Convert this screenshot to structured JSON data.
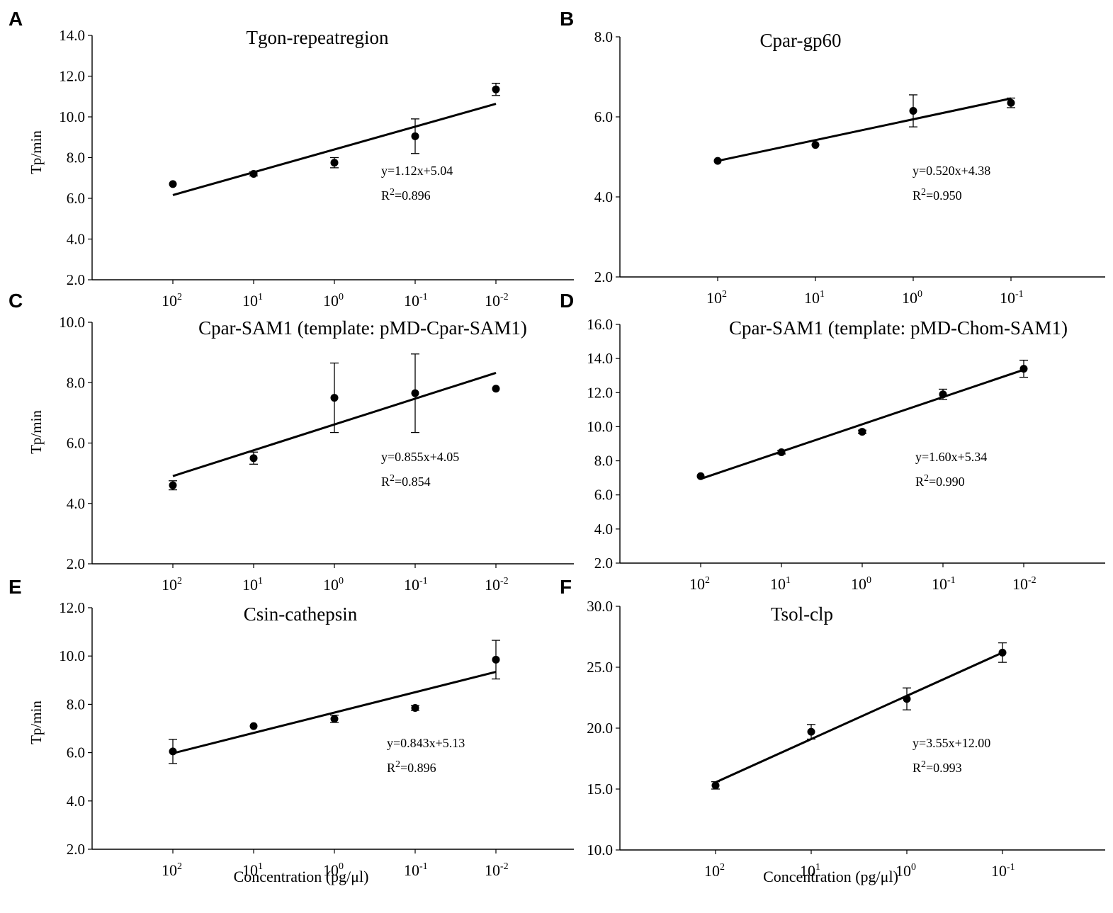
{
  "figure": {
    "xlabel": "Concentration (pg/μl)"
  },
  "chart_data": [
    {
      "panel": "A",
      "type": "scatter",
      "title": "Tgon-repeatregion",
      "ylabel": "Tp/min",
      "xlabel": "",
      "ylim": [
        2.0,
        14.0
      ],
      "yticks": [
        "2.0",
        "4.0",
        "6.0",
        "8.0",
        "10.0",
        "12.0",
        "14.0"
      ],
      "categories": [
        {
          "base": "10",
          "exp": "2"
        },
        {
          "base": "10",
          "exp": "1"
        },
        {
          "base": "10",
          "exp": "0"
        },
        {
          "base": "10",
          "exp": "-1"
        },
        {
          "base": "10",
          "exp": "-2"
        }
      ],
      "values": [
        6.7,
        7.2,
        7.75,
        9.05,
        11.35
      ],
      "errors": [
        0.0,
        0.1,
        0.25,
        0.85,
        0.3
      ],
      "fit": {
        "slope": 1.12,
        "intercept": 5.04
      },
      "equation": "y=1.12x+5.04",
      "r2_label": "R",
      "r2_sup": "2",
      "r2_value": "=0.896"
    },
    {
      "panel": "B",
      "type": "scatter",
      "title": "Cpar-gp60",
      "ylabel": "",
      "xlabel": "",
      "ylim": [
        2.0,
        8.0
      ],
      "yticks": [
        "2.0",
        "4.0",
        "6.0",
        "8.0"
      ],
      "categories": [
        {
          "base": "10",
          "exp": "2"
        },
        {
          "base": "10",
          "exp": "1"
        },
        {
          "base": "10",
          "exp": "0"
        },
        {
          "base": "10",
          "exp": "-1"
        }
      ],
      "values": [
        4.9,
        5.3,
        6.15,
        6.35
      ],
      "errors": [
        0.0,
        0.0,
        0.4,
        0.12
      ],
      "fit": {
        "slope": 0.52,
        "intercept": 4.38
      },
      "equation": "y=0.520x+4.38",
      "r2_label": "R",
      "r2_sup": "2",
      "r2_value": "=0.950"
    },
    {
      "panel": "C",
      "type": "scatter",
      "title": "Cpar-SAM1 (template: pMD-Cpar-SAM1)",
      "ylabel": "Tp/min",
      "xlabel": "",
      "ylim": [
        2.0,
        10.0
      ],
      "yticks": [
        "2.0",
        "4.0",
        "6.0",
        "8.0",
        "10.0"
      ],
      "categories": [
        {
          "base": "10",
          "exp": "2"
        },
        {
          "base": "10",
          "exp": "1"
        },
        {
          "base": "10",
          "exp": "0"
        },
        {
          "base": "10",
          "exp": "-1"
        },
        {
          "base": "10",
          "exp": "-2"
        }
      ],
      "values": [
        4.6,
        5.5,
        7.5,
        7.65,
        7.8
      ],
      "errors": [
        0.15,
        0.2,
        1.15,
        1.3,
        0.0
      ],
      "fit": {
        "slope": 0.855,
        "intercept": 4.05
      },
      "equation": "y=0.855x+4.05",
      "r2_label": "R",
      "r2_sup": "2",
      "r2_value": "=0.854"
    },
    {
      "panel": "D",
      "type": "scatter",
      "title": "Cpar-SAM1 (template: pMD-Chom-SAM1)",
      "ylabel": "",
      "xlabel": "",
      "ylim": [
        2.0,
        16.0
      ],
      "yticks": [
        "2.0",
        "4.0",
        "6.0",
        "8.0",
        "10.0",
        "12.0",
        "14.0",
        "16.0"
      ],
      "categories": [
        {
          "base": "10",
          "exp": "2"
        },
        {
          "base": "10",
          "exp": "1"
        },
        {
          "base": "10",
          "exp": "0"
        },
        {
          "base": "10",
          "exp": "-1"
        },
        {
          "base": "10",
          "exp": "-2"
        }
      ],
      "values": [
        7.1,
        8.5,
        9.7,
        11.9,
        13.4
      ],
      "errors": [
        0.0,
        0.1,
        0.1,
        0.3,
        0.5
      ],
      "fit": {
        "slope": 1.6,
        "intercept": 5.34
      },
      "equation": "y=1.60x+5.34",
      "r2_label": "R",
      "r2_sup": "2",
      "r2_value": "=0.990"
    },
    {
      "panel": "E",
      "type": "scatter",
      "title": "Csin-cathepsin",
      "ylabel": "Tp/min",
      "xlabel": "Concentration (pg/μl)",
      "ylim": [
        2.0,
        12.0
      ],
      "yticks": [
        "2.0",
        "4.0",
        "6.0",
        "8.0",
        "10.0",
        "12.0"
      ],
      "categories": [
        {
          "base": "10",
          "exp": "2"
        },
        {
          "base": "10",
          "exp": "1"
        },
        {
          "base": "10",
          "exp": "0"
        },
        {
          "base": "10",
          "exp": "-1"
        },
        {
          "base": "10",
          "exp": "-2"
        }
      ],
      "values": [
        6.05,
        7.1,
        7.4,
        7.85,
        9.85
      ],
      "errors": [
        0.5,
        0.0,
        0.15,
        0.1,
        0.8
      ],
      "fit": {
        "slope": 0.843,
        "intercept": 5.13
      },
      "equation": "y=0.843x+5.13",
      "r2_label": "R",
      "r2_sup": "2",
      "r2_value": "=0.896"
    },
    {
      "panel": "F",
      "type": "scatter",
      "title": "Tsol-clp",
      "ylabel": "",
      "xlabel": "Concentration (pg/μl)",
      "ylim": [
        10.0,
        30.0
      ],
      "yticks": [
        "10.0",
        "15.0",
        "20.0",
        "25.0",
        "30.0"
      ],
      "categories": [
        {
          "base": "10",
          "exp": "2"
        },
        {
          "base": "10",
          "exp": "1"
        },
        {
          "base": "10",
          "exp": "0"
        },
        {
          "base": "10",
          "exp": "-1"
        }
      ],
      "values": [
        15.3,
        19.7,
        22.4,
        26.2
      ],
      "errors": [
        0.3,
        0.6,
        0.9,
        0.8
      ],
      "fit": {
        "slope": 3.55,
        "intercept": 12.0
      },
      "equation": "y=3.55x+12.00",
      "r2_label": "R",
      "r2_sup": "2",
      "r2_value": "=0.993"
    }
  ]
}
